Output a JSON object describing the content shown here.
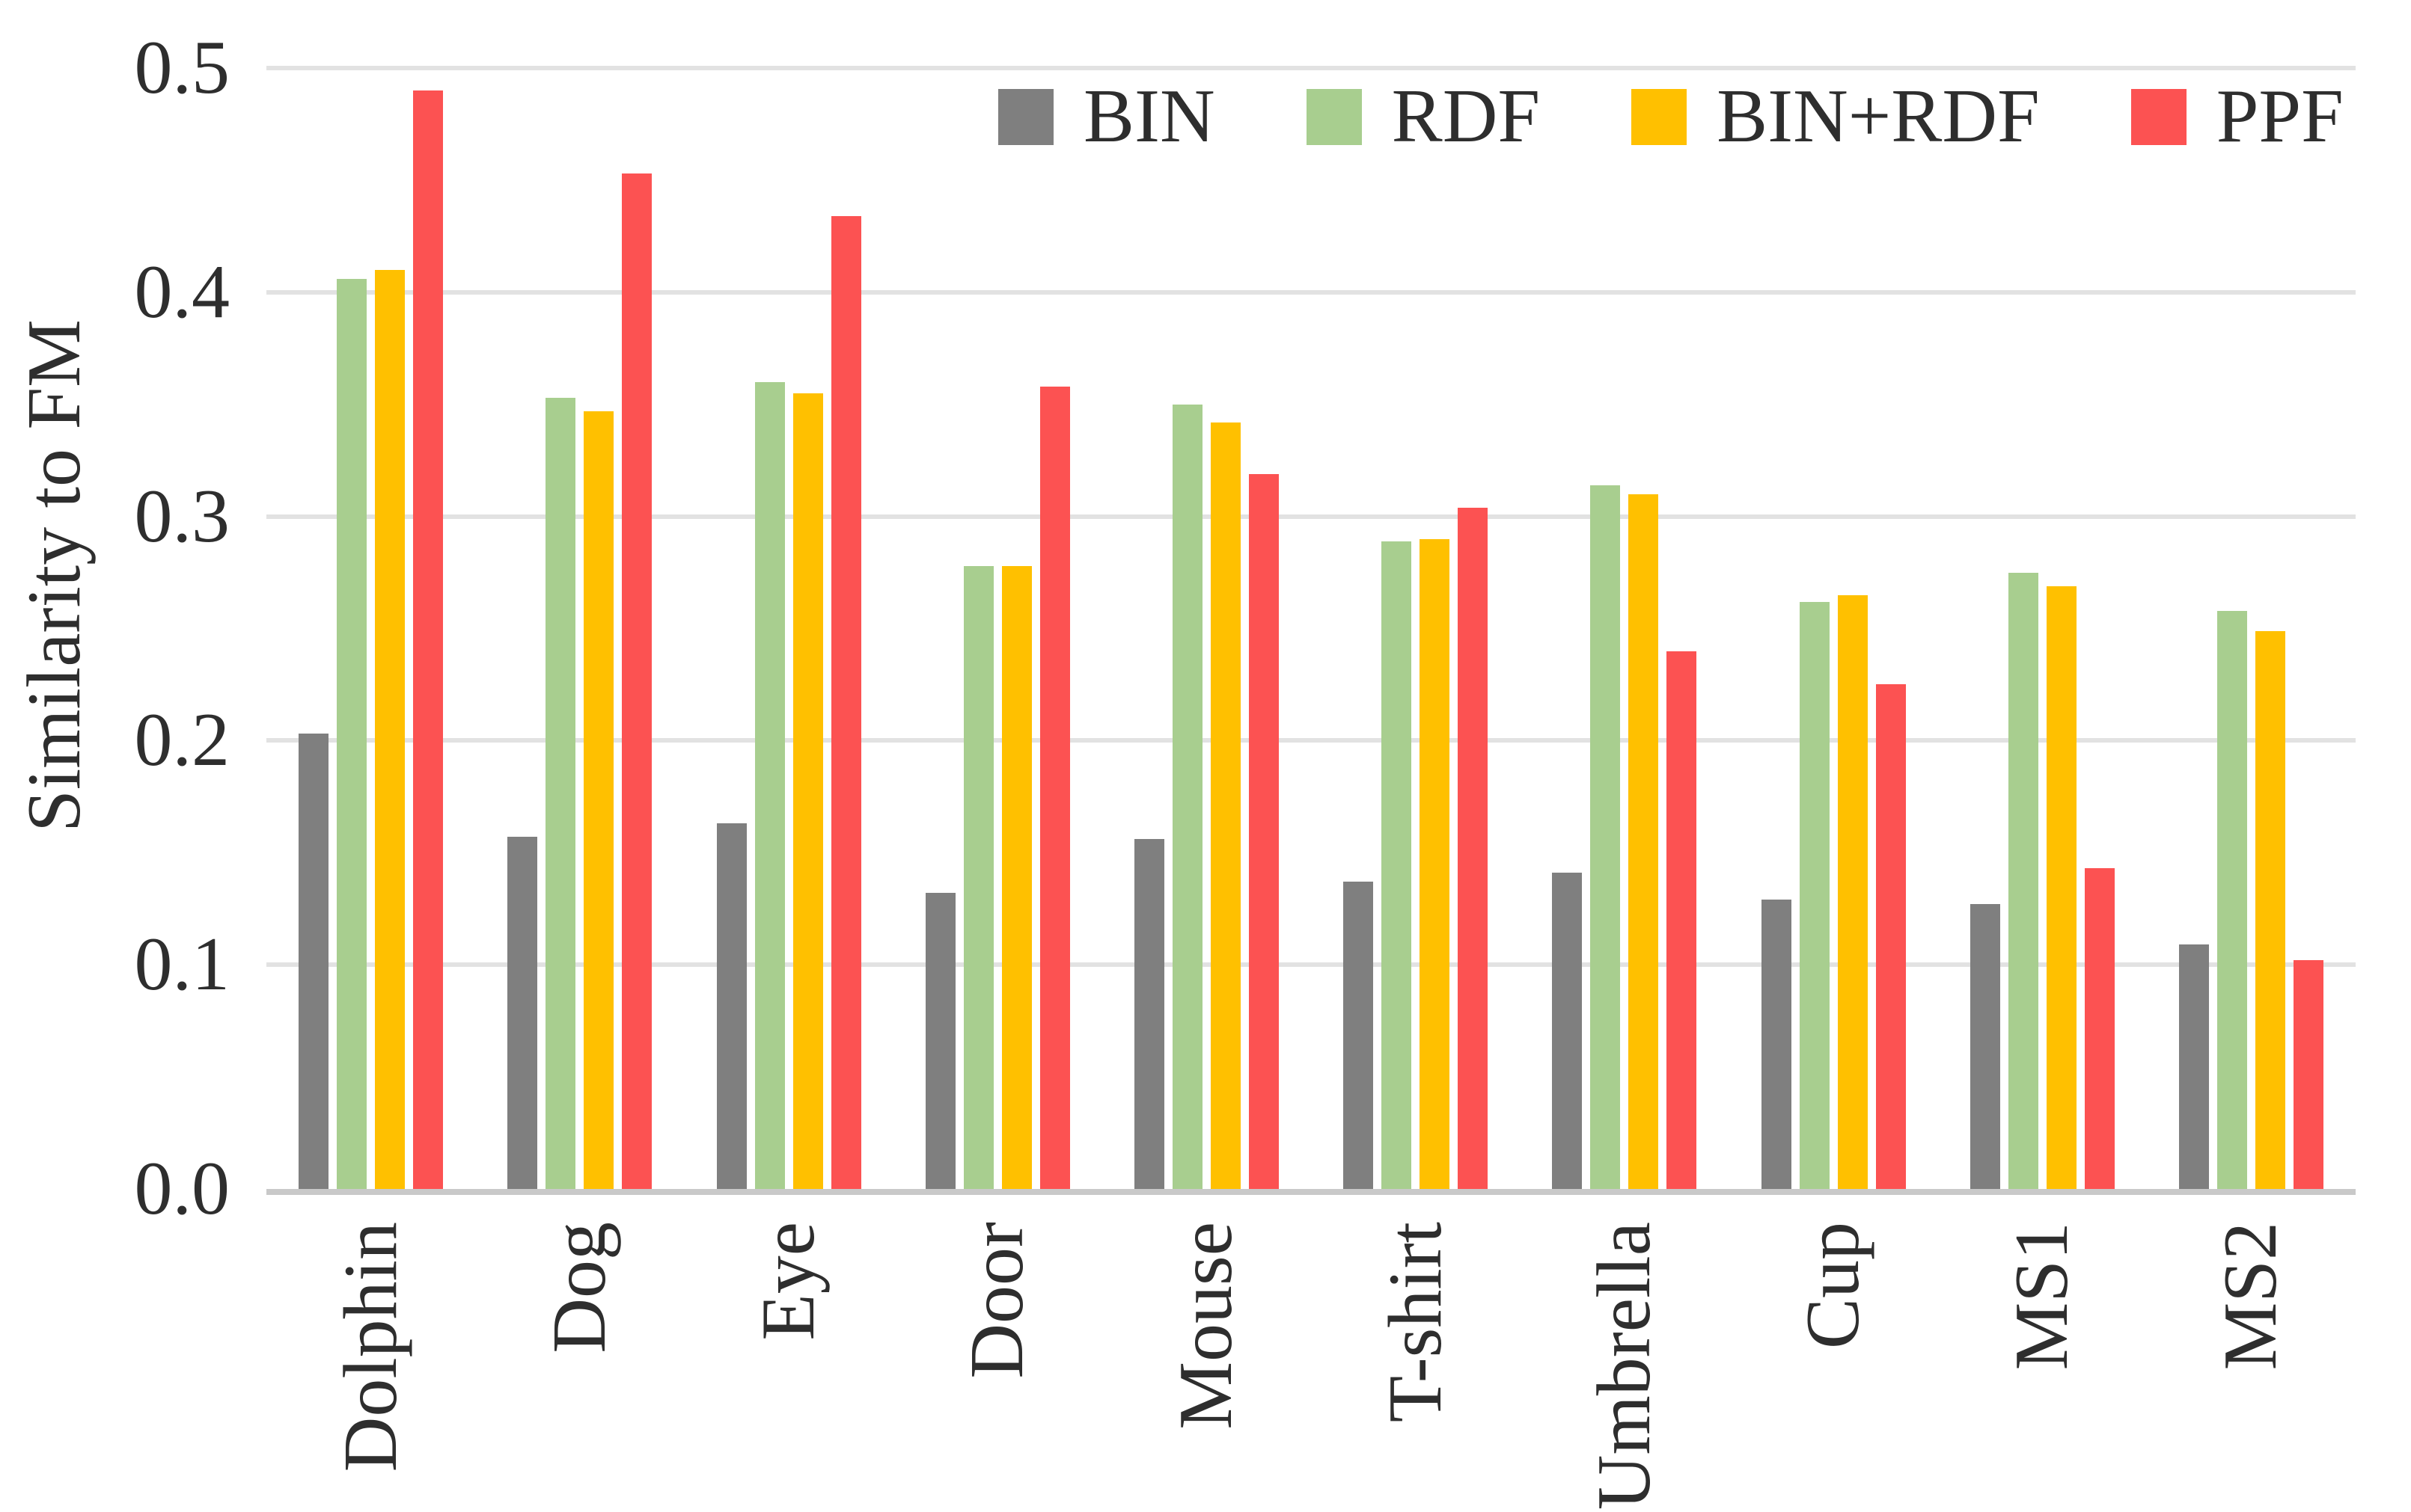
{
  "figure": {
    "background": "#ffffff",
    "text_color": "#2e2e2e",
    "gridline_color": "#e2e2e2",
    "axis_line_color": "#c9c9c9"
  },
  "chart_data": {
    "type": "bar",
    "title": "",
    "xlabel": "",
    "ylabel": "Similarity to FM",
    "ylim": [
      0.0,
      0.5
    ],
    "yticks": [
      "0.0",
      "0.1",
      "0.2",
      "0.3",
      "0.4",
      "0.5"
    ],
    "grid": "horizontal gridlines only",
    "legend_position": "top, inside plot, horizontal row",
    "categories": [
      "Dolphin",
      "Dog",
      "Eye",
      "Door",
      "Mouse",
      "T-shirt",
      "Umbrella",
      "Cup",
      "MS1",
      "MS2"
    ],
    "series": [
      {
        "name": "BIN",
        "key": "bin",
        "color": "#7f7f7f",
        "values": [
          0.203,
          0.157,
          0.163,
          0.132,
          0.156,
          0.137,
          0.141,
          0.129,
          0.127,
          0.109
        ]
      },
      {
        "name": "RDF",
        "key": "rdf",
        "color": "#a8ce8f",
        "values": [
          0.406,
          0.353,
          0.36,
          0.278,
          0.35,
          0.289,
          0.314,
          0.262,
          0.275,
          0.258
        ]
      },
      {
        "name": "BIN+RDF",
        "key": "bin-rdf",
        "color": "#ffc000",
        "values": [
          0.41,
          0.347,
          0.355,
          0.278,
          0.342,
          0.29,
          0.31,
          0.265,
          0.269,
          0.249
        ]
      },
      {
        "name": "PPF",
        "key": "ppf",
        "color": "#fc5252",
        "values": [
          0.49,
          0.453,
          0.434,
          0.358,
          0.319,
          0.304,
          0.24,
          0.225,
          0.143,
          0.102
        ]
      }
    ]
  }
}
